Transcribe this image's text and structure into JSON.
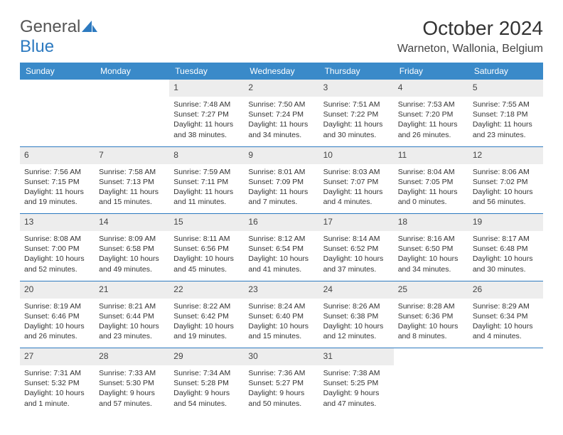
{
  "logo": {
    "text1": "General",
    "text2": "Blue"
  },
  "header": {
    "title": "October 2024",
    "location": "Warneton, Wallonia, Belgium"
  },
  "colors": {
    "header_bg": "#3a8ac9",
    "border": "#2d7ac0",
    "daynum_bg": "#ededed"
  },
  "days_of_week": [
    "Sunday",
    "Monday",
    "Tuesday",
    "Wednesday",
    "Thursday",
    "Friday",
    "Saturday"
  ],
  "weeks": [
    [
      null,
      null,
      {
        "n": "1",
        "sr": "Sunrise: 7:48 AM",
        "ss": "Sunset: 7:27 PM",
        "dl": "Daylight: 11 hours and 38 minutes."
      },
      {
        "n": "2",
        "sr": "Sunrise: 7:50 AM",
        "ss": "Sunset: 7:24 PM",
        "dl": "Daylight: 11 hours and 34 minutes."
      },
      {
        "n": "3",
        "sr": "Sunrise: 7:51 AM",
        "ss": "Sunset: 7:22 PM",
        "dl": "Daylight: 11 hours and 30 minutes."
      },
      {
        "n": "4",
        "sr": "Sunrise: 7:53 AM",
        "ss": "Sunset: 7:20 PM",
        "dl": "Daylight: 11 hours and 26 minutes."
      },
      {
        "n": "5",
        "sr": "Sunrise: 7:55 AM",
        "ss": "Sunset: 7:18 PM",
        "dl": "Daylight: 11 hours and 23 minutes."
      }
    ],
    [
      {
        "n": "6",
        "sr": "Sunrise: 7:56 AM",
        "ss": "Sunset: 7:15 PM",
        "dl": "Daylight: 11 hours and 19 minutes."
      },
      {
        "n": "7",
        "sr": "Sunrise: 7:58 AM",
        "ss": "Sunset: 7:13 PM",
        "dl": "Daylight: 11 hours and 15 minutes."
      },
      {
        "n": "8",
        "sr": "Sunrise: 7:59 AM",
        "ss": "Sunset: 7:11 PM",
        "dl": "Daylight: 11 hours and 11 minutes."
      },
      {
        "n": "9",
        "sr": "Sunrise: 8:01 AM",
        "ss": "Sunset: 7:09 PM",
        "dl": "Daylight: 11 hours and 7 minutes."
      },
      {
        "n": "10",
        "sr": "Sunrise: 8:03 AM",
        "ss": "Sunset: 7:07 PM",
        "dl": "Daylight: 11 hours and 4 minutes."
      },
      {
        "n": "11",
        "sr": "Sunrise: 8:04 AM",
        "ss": "Sunset: 7:05 PM",
        "dl": "Daylight: 11 hours and 0 minutes."
      },
      {
        "n": "12",
        "sr": "Sunrise: 8:06 AM",
        "ss": "Sunset: 7:02 PM",
        "dl": "Daylight: 10 hours and 56 minutes."
      }
    ],
    [
      {
        "n": "13",
        "sr": "Sunrise: 8:08 AM",
        "ss": "Sunset: 7:00 PM",
        "dl": "Daylight: 10 hours and 52 minutes."
      },
      {
        "n": "14",
        "sr": "Sunrise: 8:09 AM",
        "ss": "Sunset: 6:58 PM",
        "dl": "Daylight: 10 hours and 49 minutes."
      },
      {
        "n": "15",
        "sr": "Sunrise: 8:11 AM",
        "ss": "Sunset: 6:56 PM",
        "dl": "Daylight: 10 hours and 45 minutes."
      },
      {
        "n": "16",
        "sr": "Sunrise: 8:12 AM",
        "ss": "Sunset: 6:54 PM",
        "dl": "Daylight: 10 hours and 41 minutes."
      },
      {
        "n": "17",
        "sr": "Sunrise: 8:14 AM",
        "ss": "Sunset: 6:52 PM",
        "dl": "Daylight: 10 hours and 37 minutes."
      },
      {
        "n": "18",
        "sr": "Sunrise: 8:16 AM",
        "ss": "Sunset: 6:50 PM",
        "dl": "Daylight: 10 hours and 34 minutes."
      },
      {
        "n": "19",
        "sr": "Sunrise: 8:17 AM",
        "ss": "Sunset: 6:48 PM",
        "dl": "Daylight: 10 hours and 30 minutes."
      }
    ],
    [
      {
        "n": "20",
        "sr": "Sunrise: 8:19 AM",
        "ss": "Sunset: 6:46 PM",
        "dl": "Daylight: 10 hours and 26 minutes."
      },
      {
        "n": "21",
        "sr": "Sunrise: 8:21 AM",
        "ss": "Sunset: 6:44 PM",
        "dl": "Daylight: 10 hours and 23 minutes."
      },
      {
        "n": "22",
        "sr": "Sunrise: 8:22 AM",
        "ss": "Sunset: 6:42 PM",
        "dl": "Daylight: 10 hours and 19 minutes."
      },
      {
        "n": "23",
        "sr": "Sunrise: 8:24 AM",
        "ss": "Sunset: 6:40 PM",
        "dl": "Daylight: 10 hours and 15 minutes."
      },
      {
        "n": "24",
        "sr": "Sunrise: 8:26 AM",
        "ss": "Sunset: 6:38 PM",
        "dl": "Daylight: 10 hours and 12 minutes."
      },
      {
        "n": "25",
        "sr": "Sunrise: 8:28 AM",
        "ss": "Sunset: 6:36 PM",
        "dl": "Daylight: 10 hours and 8 minutes."
      },
      {
        "n": "26",
        "sr": "Sunrise: 8:29 AM",
        "ss": "Sunset: 6:34 PM",
        "dl": "Daylight: 10 hours and 4 minutes."
      }
    ],
    [
      {
        "n": "27",
        "sr": "Sunrise: 7:31 AM",
        "ss": "Sunset: 5:32 PM",
        "dl": "Daylight: 10 hours and 1 minute."
      },
      {
        "n": "28",
        "sr": "Sunrise: 7:33 AM",
        "ss": "Sunset: 5:30 PM",
        "dl": "Daylight: 9 hours and 57 minutes."
      },
      {
        "n": "29",
        "sr": "Sunrise: 7:34 AM",
        "ss": "Sunset: 5:28 PM",
        "dl": "Daylight: 9 hours and 54 minutes."
      },
      {
        "n": "30",
        "sr": "Sunrise: 7:36 AM",
        "ss": "Sunset: 5:27 PM",
        "dl": "Daylight: 9 hours and 50 minutes."
      },
      {
        "n": "31",
        "sr": "Sunrise: 7:38 AM",
        "ss": "Sunset: 5:25 PM",
        "dl": "Daylight: 9 hours and 47 minutes."
      },
      null,
      null
    ]
  ]
}
